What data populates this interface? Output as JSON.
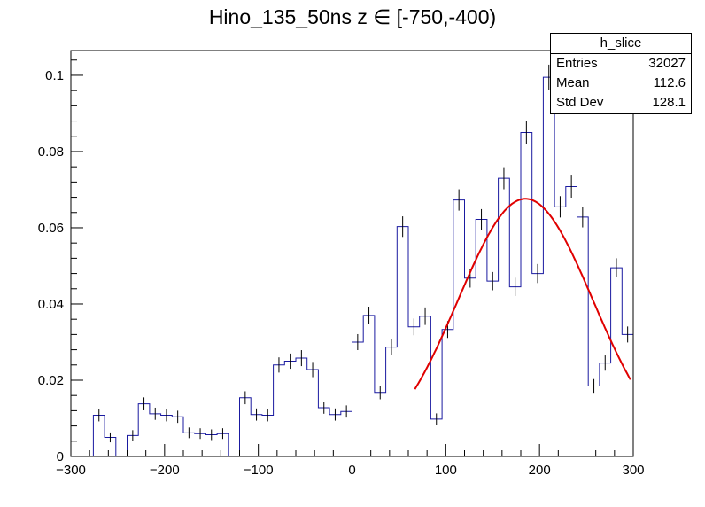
{
  "chart_data": {
    "type": "histogram",
    "title": "Hino_135_50ns z  ∈ [-750,-400)",
    "xlim": [
      -300,
      300
    ],
    "ylim": [
      0,
      0.1065
    ],
    "xticks": [
      -300,
      -200,
      -100,
      0,
      100,
      200,
      300
    ],
    "xtick_labels": [
      "−300",
      "−200",
      "−100",
      "0",
      "100",
      "200",
      "300"
    ],
    "yticks": [
      0,
      0.02,
      0.04,
      0.06,
      0.08,
      0.1
    ],
    "ytick_labels": [
      "0",
      "0.02",
      "0.04",
      "0.06",
      "0.08",
      "0.1"
    ],
    "bin_width": 13.33,
    "bin_edges_start": -300,
    "values": [
      0,
      0,
      0.0108,
      0.005,
      0,
      0.0055,
      0.0138,
      0.0112,
      0.0108,
      0.0104,
      0.0062,
      0.006,
      0.0057,
      0.006,
      0,
      0.0154,
      0.011,
      0.0108,
      0.024,
      0.025,
      0.0258,
      0.0228,
      0.0128,
      0.011,
      0.0118,
      0.03,
      0.037,
      0.0168,
      0.0287,
      0.0603,
      0.034,
      0.0368,
      0.0098,
      0.0333,
      0.0673,
      0.0468,
      0.0622,
      0.046,
      0.073,
      0.0445,
      0.085,
      0.048,
      0.0995,
      0.0655,
      0.0708,
      0.0628,
      0.0185,
      0.0245,
      0.0495,
      0.032
    ],
    "errors": [
      0,
      0,
      0.0009,
      0.0006,
      0,
      0.0007,
      0.001,
      0.0009,
      0.0009,
      0.0009,
      0.0007,
      0.0007,
      0.0007,
      0.0007,
      0,
      0.001,
      0.0009,
      0.0009,
      0.0013,
      0.0013,
      0.0014,
      0.0013,
      0.0009,
      0.0009,
      0.0009,
      0.0014,
      0.0016,
      0.0011,
      0.0014,
      0.002,
      0.0015,
      0.0016,
      0.0008,
      0.0015,
      0.0021,
      0.0018,
      0.002,
      0.0017,
      0.0022,
      0.0017,
      0.0024,
      0.0018,
      0.0026,
      0.0021,
      0.0022,
      0.002,
      0.0011,
      0.0013,
      0.0018,
      0.0014
    ],
    "fit": {
      "type": "gaussian",
      "constant": 0.0676,
      "mean": 185,
      "sigma": 72,
      "x_range": [
        67,
        297
      ]
    },
    "colors": {
      "histogram": "#1a1aa0",
      "fit": "#e00000",
      "errors": "#000000"
    }
  },
  "stats": {
    "name": "h_slice",
    "rows": [
      {
        "label": "Entries",
        "value": "32027"
      },
      {
        "label": "Mean",
        "value": "112.6"
      },
      {
        "label": "Std Dev",
        "value": "128.1"
      }
    ]
  }
}
